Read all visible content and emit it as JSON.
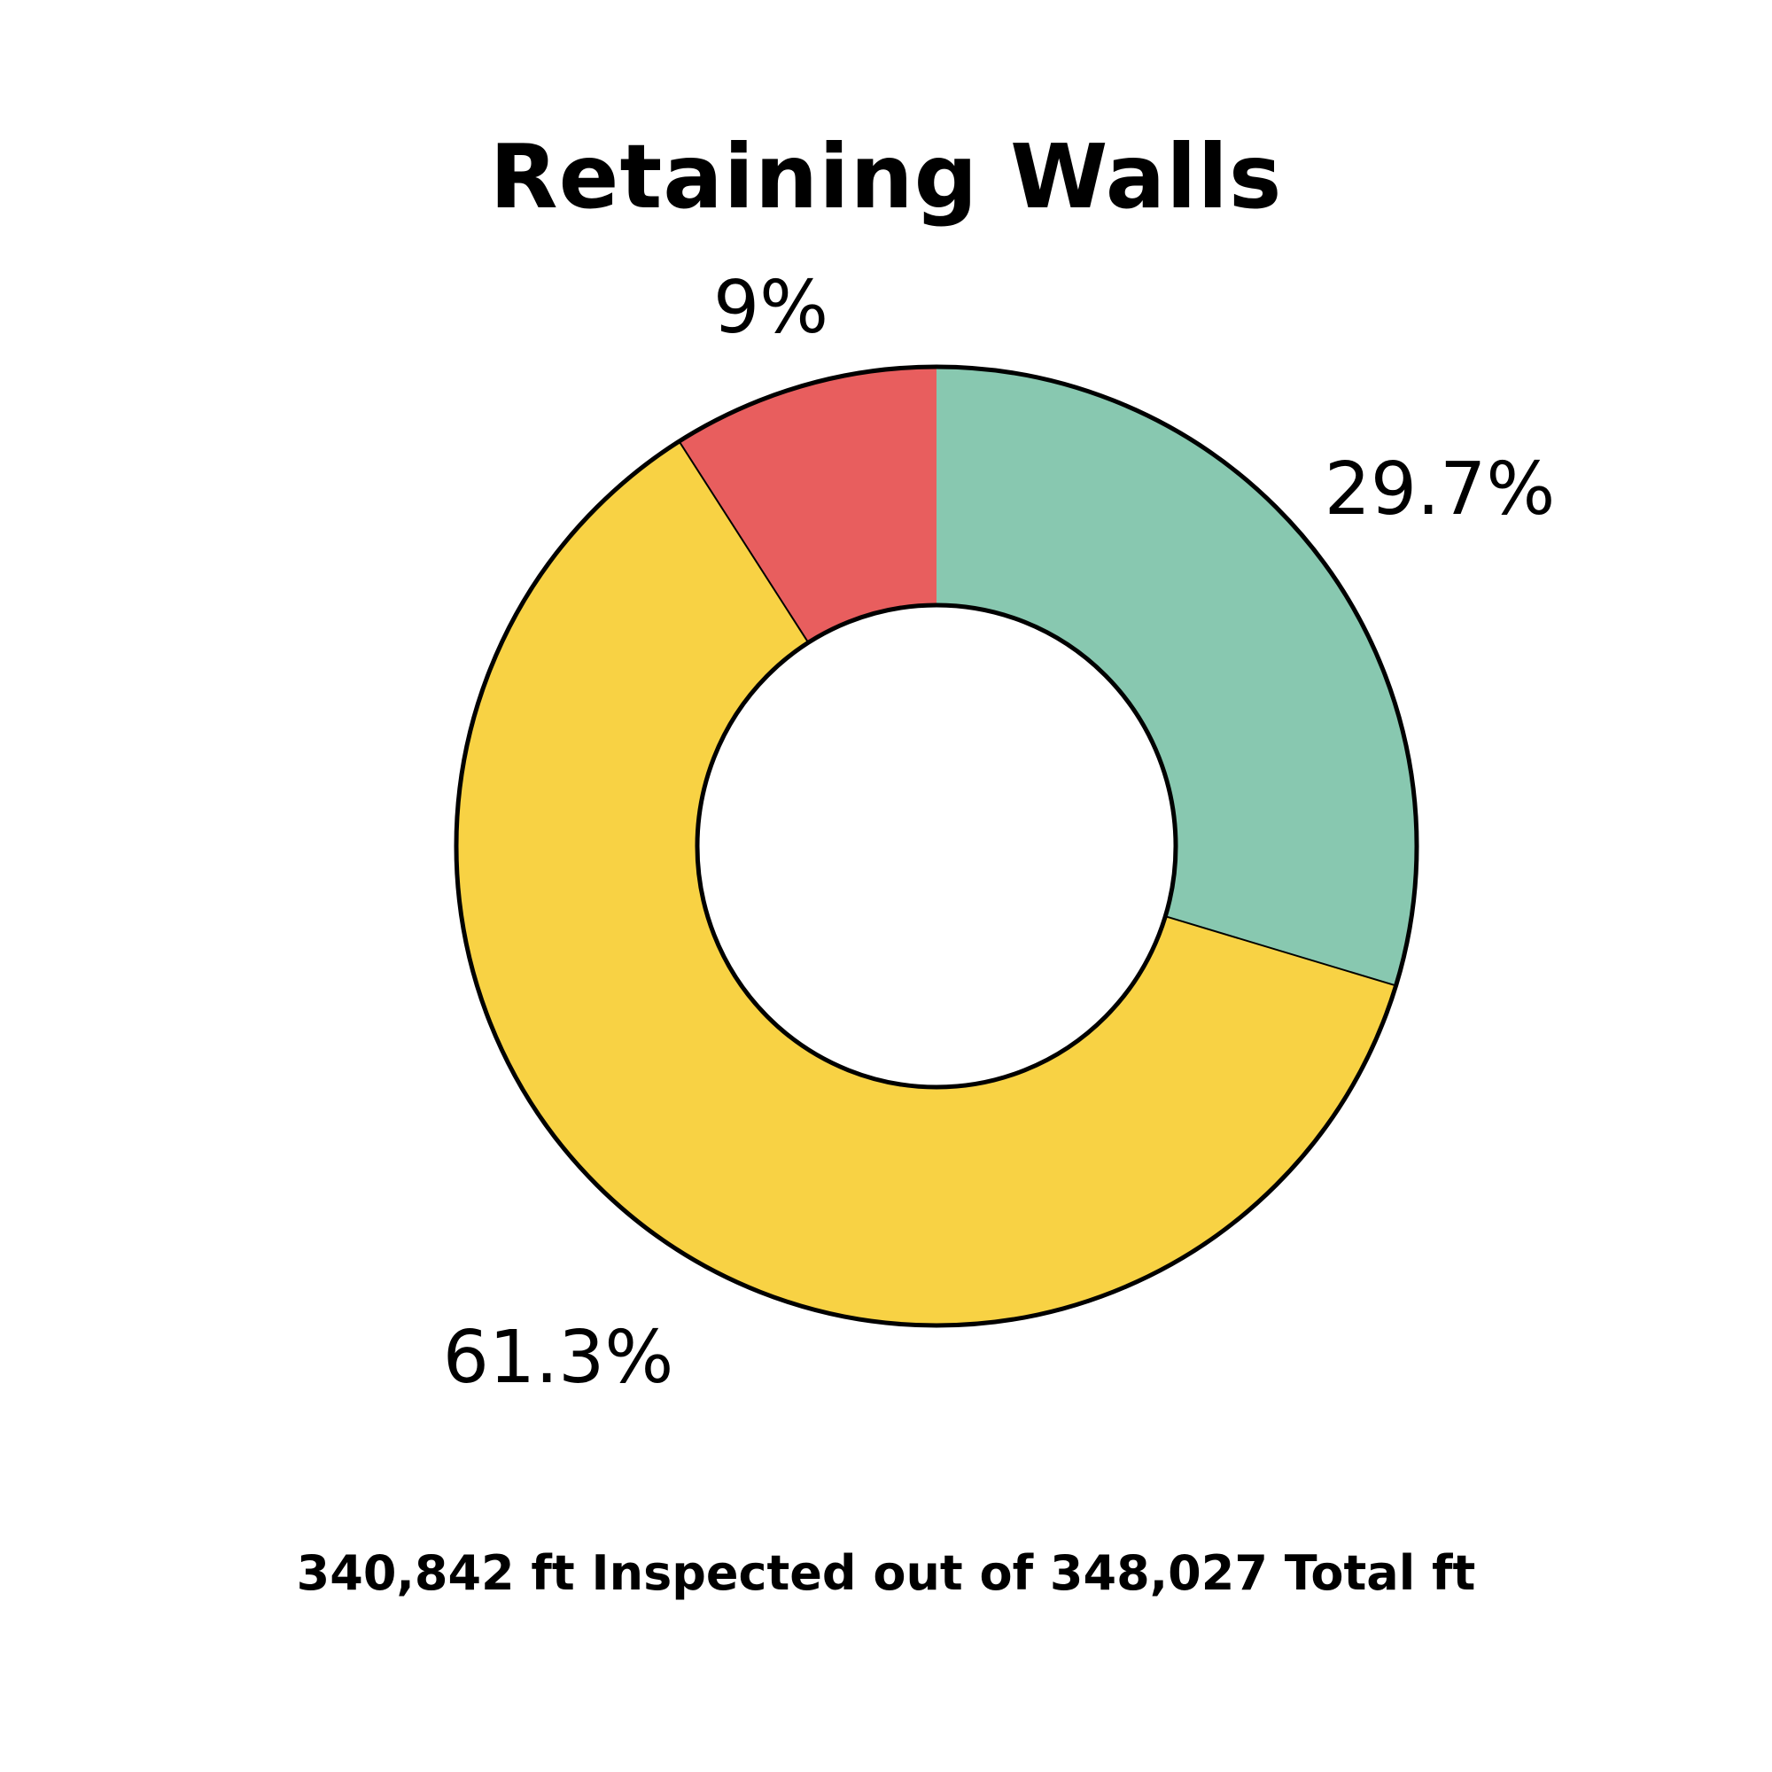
{
  "chart_data": {
    "type": "pie",
    "title": "Retaining Walls",
    "donut": true,
    "categories": [
      "",
      "",
      ""
    ],
    "values": [
      29.7,
      61.3,
      9
    ],
    "labels": [
      "29.7%",
      "61.3%",
      "9%"
    ],
    "colors": [
      "#88C8B0",
      "#F8D244",
      "#E85E5E"
    ],
    "start": "top",
    "direction": "clockwise",
    "legend": "none",
    "footer": "340,842 ft Inspected out of 348,027 Total ft"
  }
}
